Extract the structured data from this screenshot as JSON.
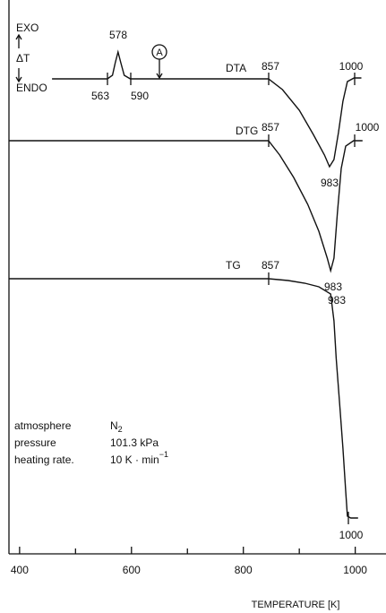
{
  "chart_data": {
    "type": "line",
    "xlabel": "TEMPERATURE [K]",
    "xlim": [
      381,
      1055
    ],
    "xticks": [
      400,
      600,
      800,
      1000
    ],
    "xminorticks": [
      500,
      700,
      900
    ],
    "ylim": [
      0,
      608
    ],
    "series": [
      {
        "name": "DTA",
        "color": "#111111",
        "x": [
          458,
          557,
          566,
          571,
          576,
          581,
          587,
          598,
          845,
          870,
          900,
          925,
          945,
          954,
          962,
          970,
          978,
          986,
          998,
          1011
        ],
        "values": [
          530,
          530,
          534,
          548,
          560,
          548,
          534,
          530,
          530,
          518,
          495,
          468,
          445,
          432,
          440,
          470,
          505,
          527,
          531,
          531
        ]
      },
      {
        "name": "DTG",
        "color": "#111111",
        "x": [
          381,
          845,
          865,
          890,
          915,
          935,
          950,
          956,
          962,
          968,
          975,
          983,
          997,
          1013
        ],
        "values": [
          461,
          461,
          445,
          420,
          390,
          360,
          330,
          316,
          330,
          380,
          430,
          455,
          461,
          461
        ]
      },
      {
        "name": "TG",
        "color": "#111111",
        "x": [
          381,
          845,
          880,
          910,
          935,
          956,
          962,
          966,
          972,
          978,
          983,
          986,
          992,
          1005
        ],
        "values": [
          307,
          307,
          305,
          302,
          298,
          290,
          260,
          218,
          168,
          118,
          70,
          42,
          40,
          40
        ]
      }
    ],
    "annotations": {
      "dta": [
        "578",
        "563",
        "590",
        "857",
        "1000",
        "983"
      ],
      "dtg": [
        "857",
        "1000",
        "983"
      ],
      "tg": [
        "857",
        "983",
        "1000"
      ],
      "marker": "A"
    },
    "axis_note": {
      "exo": "EXO",
      "delta": "ΔT",
      "endo": "ENDO"
    },
    "conditions": [
      [
        "atmosphere",
        "N",
        "2"
      ],
      [
        "pressure",
        "101.3 kPa"
      ],
      [
        "heating rate.",
        "10 K · min",
        "−1"
      ]
    ]
  }
}
